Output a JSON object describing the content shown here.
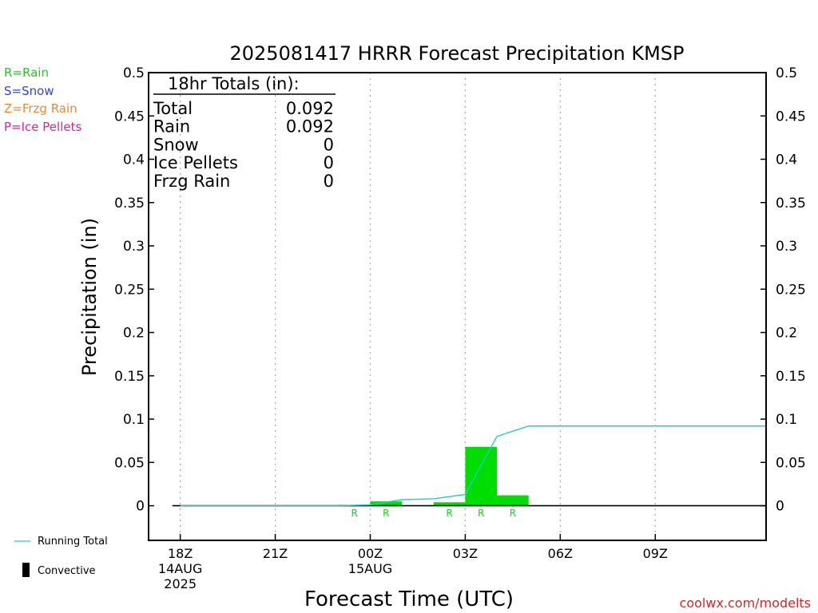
{
  "chart_data": {
    "type": "bar",
    "title": "2025081417 HRRR Forecast Precipitation KMSP",
    "xlabel": "Forecast Time (UTC)",
    "ylabel": "Precipitation (in)",
    "ylim": [
      -0.04,
      0.5
    ],
    "yticks": [
      0,
      0.05,
      0.1,
      0.15,
      0.2,
      0.25,
      0.3,
      0.35,
      0.4,
      0.45,
      0.5
    ],
    "ytick_labels": [
      "0",
      "0.05",
      "0.1",
      "0.15",
      "0.2",
      "0.25",
      "0.3",
      "0.35",
      "0.4",
      "0.45",
      "0.5"
    ],
    "xlim_hours": [
      -1,
      18.5
    ],
    "xticks": [
      {
        "hour": 0,
        "lines": [
          "18Z",
          "14AUG",
          "2025"
        ]
      },
      {
        "hour": 3,
        "lines": [
          "21Z"
        ]
      },
      {
        "hour": 6,
        "lines": [
          "00Z",
          "15AUG"
        ]
      },
      {
        "hour": 9,
        "lines": [
          "03Z"
        ]
      },
      {
        "hour": 12,
        "lines": [
          "06Z"
        ]
      },
      {
        "hour": 15,
        "lines": [
          "09Z"
        ]
      }
    ],
    "grid": "vertical dotted at tick hours",
    "hours": [
      0,
      1,
      2,
      3,
      4,
      5,
      6,
      7,
      8,
      9,
      10,
      11,
      12,
      13,
      14,
      15,
      16,
      17,
      18
    ],
    "hourly_precip": [
      0,
      0,
      0,
      0,
      0,
      0,
      0.001,
      0.005,
      0,
      0.004,
      0.068,
      0.012,
      0,
      0,
      0,
      0,
      0,
      0,
      0
    ],
    "ptype": [
      "",
      "",
      "",
      "",
      "",
      "",
      "R",
      "R",
      "",
      "R",
      "R",
      "R",
      "",
      "",
      "",
      "",
      "",
      "",
      ""
    ],
    "running_total": [
      0,
      0,
      0,
      0,
      0,
      0,
      0.001,
      0.007,
      0.008,
      0.013,
      0.08,
      0.092,
      0.092,
      0.092,
      0.092,
      0.092,
      0.092,
      0.092,
      0.092
    ],
    "series": [
      {
        "name": "Running Total",
        "color": "#22cccc"
      },
      {
        "name": "Convective",
        "color": "#000000"
      }
    ],
    "bar_color": "#00dd00"
  },
  "totals": {
    "header": "18hr Totals (in):",
    "rows": [
      {
        "label": "Total",
        "value": "0.092"
      },
      {
        "label": "Rain",
        "value": "0.092"
      },
      {
        "label": "Snow",
        "value": "0"
      },
      {
        "label": "Ice Pellets",
        "value": "0"
      },
      {
        "label": "Frzg Rain",
        "value": "0"
      }
    ]
  },
  "ptype_legend": [
    {
      "text": "R=Rain",
      "color": "#22cc22"
    },
    {
      "text": "S=Snow",
      "color": "#3344dd"
    },
    {
      "text": "Z=Frzg Rain",
      "color": "#ee8833"
    },
    {
      "text": "P=Ice Pellets",
      "color": "#dd2299"
    }
  ],
  "footer_credit": "coolwx.com/modelts",
  "credit_color": "#dd2222"
}
